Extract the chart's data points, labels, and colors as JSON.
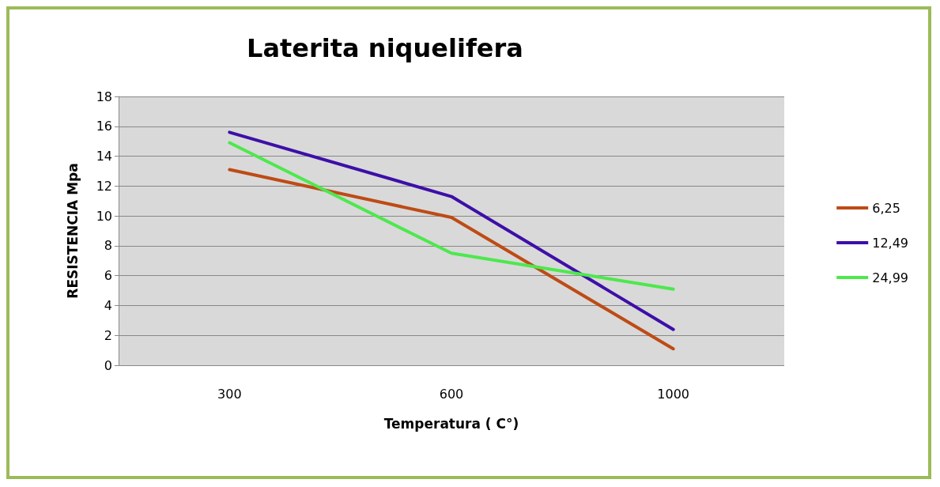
{
  "chart_data": {
    "type": "line",
    "title": "Laterita niquelifera",
    "xlabel": "Temperatura ( C°)",
    "ylabel": "RESISTENCIA Mpa",
    "categories": [
      "300",
      "600",
      "1000"
    ],
    "series": [
      {
        "name": "6,25",
        "color": "#be4b15",
        "values": [
          13.1,
          9.9,
          1.1
        ]
      },
      {
        "name": "12,49",
        "color": "#3d0fa8",
        "values": [
          15.6,
          11.3,
          2.4
        ]
      },
      {
        "name": "24,99",
        "color": "#4de84d",
        "values": [
          14.9,
          7.5,
          5.1
        ]
      }
    ],
    "ylim": [
      0,
      18
    ],
    "yticks": [
      0,
      2,
      4,
      6,
      8,
      10,
      12,
      14,
      16,
      18
    ],
    "grid": "y",
    "legend": "right",
    "marker": "none",
    "line_style": "solid"
  }
}
